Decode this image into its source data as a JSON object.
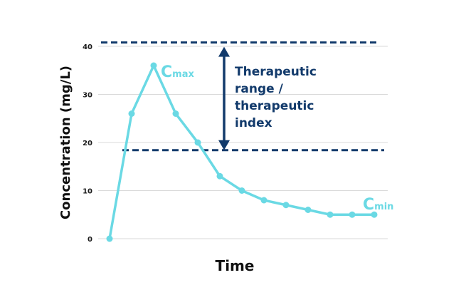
{
  "chart_data": {
    "type": "line",
    "xlabel": "Time",
    "ylabel": "Concentration (mg/L)",
    "ylim": [
      0,
      40
    ],
    "yticks": [
      0,
      10,
      20,
      30,
      40
    ],
    "grid": true,
    "series": [
      {
        "values": [
          0,
          26,
          36,
          26,
          20,
          13,
          10,
          8,
          7,
          6,
          5,
          5,
          5
        ]
      }
    ],
    "reference_lines": [
      {
        "y": 40.8,
        "style": "dashed"
      },
      {
        "y": 18.4,
        "style": "dashed"
      }
    ],
    "annotations": {
      "range_label_lines": [
        "Therapeutic",
        "range /",
        "therapeutic",
        "index"
      ],
      "cmax": {
        "main": "C",
        "sub": "max"
      },
      "cmin": {
        "main": "C",
        "sub": "min"
      }
    }
  },
  "colors": {
    "series": "#6ad9e4",
    "reference": "#123a6b",
    "grid": "#d9d9d9"
  }
}
